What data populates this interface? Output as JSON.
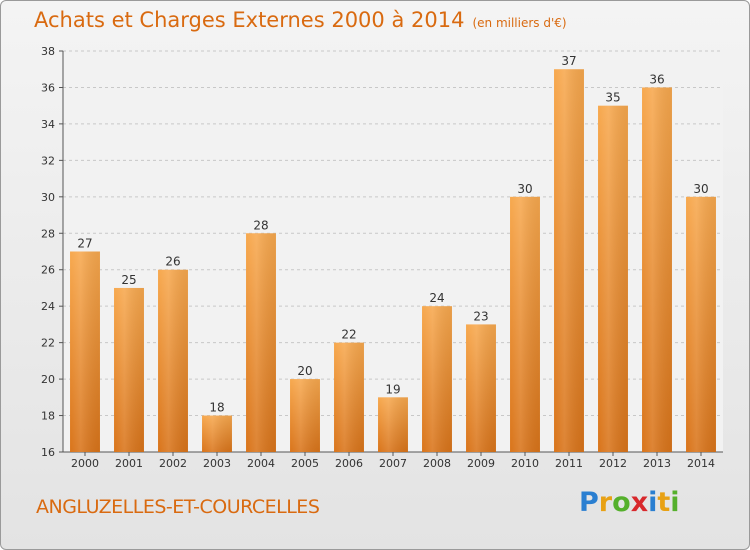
{
  "title": "Achats et Charges Externes 2000 à 2014",
  "unit": "(en milliers d'€)",
  "commune": "ANGLUZELLES-ET-COURCELLES",
  "logo": {
    "p": "P",
    "r": "r",
    "o": "o",
    "x": "x",
    "i1": "i",
    "t": "t",
    "i2": "i"
  },
  "colors": {
    "bar_light": "#f7a84e",
    "bar_dark": "#d9741a",
    "title": "#d96a10"
  },
  "chart_data": {
    "type": "bar",
    "categories": [
      "2000",
      "2001",
      "2002",
      "2003",
      "2004",
      "2005",
      "2006",
      "2007",
      "2008",
      "2009",
      "2010",
      "2011",
      "2012",
      "2013",
      "2014"
    ],
    "values": [
      27,
      25,
      26,
      18,
      28,
      20,
      22,
      19,
      24,
      23,
      30,
      37,
      35,
      36,
      30
    ],
    "ylim": [
      16,
      38
    ],
    "yticks": [
      16,
      18,
      20,
      22,
      24,
      26,
      28,
      30,
      32,
      34,
      36,
      38
    ],
    "grid": true
  }
}
